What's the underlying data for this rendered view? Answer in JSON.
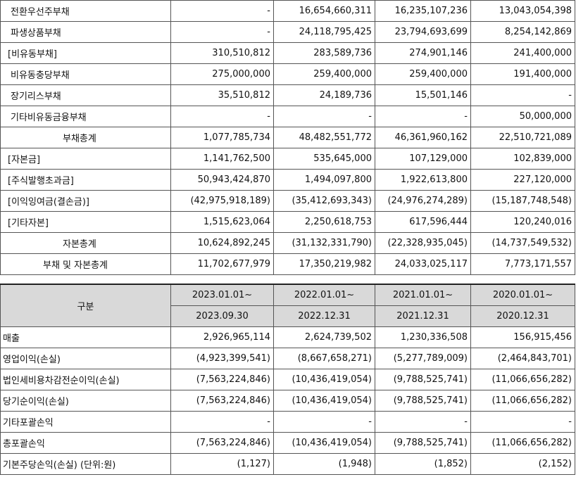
{
  "balance_sheet": {
    "rows": [
      {
        "label": "전환우선주부채",
        "values": [
          "-",
          "16,654,660,311",
          "16,235,107,236",
          "13,043,054,398"
        ]
      },
      {
        "label": "파생상품부채",
        "values": [
          "-",
          "24,118,795,425",
          "23,794,693,699",
          "8,254,142,869"
        ]
      },
      {
        "label": "[비유동부채]",
        "values": [
          "310,510,812",
          "283,589,736",
          "274,901,146",
          "241,400,000"
        ]
      },
      {
        "label": "비유동충당부채",
        "values": [
          "275,000,000",
          "259,400,000",
          "259,400,000",
          "191,400,000"
        ]
      },
      {
        "label": "장기리스부채",
        "values": [
          "35,510,812",
          "24,189,736",
          "15,501,146",
          "-"
        ]
      },
      {
        "label": "기타비유동금융부채",
        "values": [
          "-",
          "-",
          "-",
          "50,000,000"
        ]
      },
      {
        "label": "부채총계",
        "values": [
          "1,077,785,734",
          "48,482,551,772",
          "46,361,960,162",
          "22,510,721,089"
        ]
      },
      {
        "label": "[자본금]",
        "values": [
          "1,141,762,500",
          "535,645,000",
          "107,129,000",
          "102,839,000"
        ]
      },
      {
        "label": "[주식발행초과금]",
        "values": [
          "50,943,424,870",
          "1,494,097,800",
          "1,922,613,800",
          "227,120,000"
        ]
      },
      {
        "label": "[이익잉여금(결손금)]",
        "values": [
          "(42,975,918,189)",
          "(35,412,693,343)",
          "(24,976,274,289)",
          "(15,187,748,548)"
        ]
      },
      {
        "label": "[기타자본]",
        "values": [
          "1,515,623,064",
          "2,250,618,753",
          "617,596,444",
          "120,240,016"
        ]
      },
      {
        "label": "자본총계",
        "values": [
          "10,624,892,245",
          "(31,132,331,790)",
          "(22,328,935,045)",
          "(14,737,549,532)"
        ]
      },
      {
        "label": "부채 및 자본총계",
        "values": [
          "11,702,677,979",
          "17,350,219,982",
          "24,033,025,117",
          "7,773,171,557"
        ]
      }
    ]
  },
  "income_statement": {
    "header": {
      "category_label": "구분",
      "period_start": [
        "2023.01.01~",
        "2022.01.01~",
        "2021.01.01~",
        "2020.01.01~"
      ],
      "period_end": [
        "2023.09.30",
        "2022.12.31",
        "2021.12.31",
        "2020.12.31"
      ]
    },
    "rows": [
      {
        "label": "매출",
        "values": [
          "2,926,965,114",
          "2,624,739,502",
          "1,230,336,508",
          "156,915,456"
        ]
      },
      {
        "label": "영업이익(손실)",
        "values": [
          "(4,923,399,541)",
          "(8,667,658,271)",
          "(5,277,789,009)",
          "(2,464,843,701)"
        ]
      },
      {
        "label": "법인세비용차감전순이익(손실)",
        "values": [
          "(7,563,224,846)",
          "(10,436,419,054)",
          "(9,788,525,741)",
          "(11,066,656,282)"
        ]
      },
      {
        "label": "당기순이익(손실)",
        "values": [
          "(7,563,224,846)",
          "(10,436,419,054)",
          "(9,788,525,741)",
          "(11,066,656,282)"
        ]
      },
      {
        "label": "기타포괄손익",
        "values": [
          "-",
          "-",
          "-",
          "-"
        ]
      },
      {
        "label": "총포괄손익",
        "values": [
          "(7,563,224,846)",
          "(10,436,419,054)",
          "(9,788,525,741)",
          "(11,066,656,282)"
        ]
      },
      {
        "label": "기본주당손익(손실) (단위:원)",
        "values": [
          "(1,127)",
          "(1,948)",
          "(1,852)",
          "(2,152)"
        ]
      }
    ]
  }
}
